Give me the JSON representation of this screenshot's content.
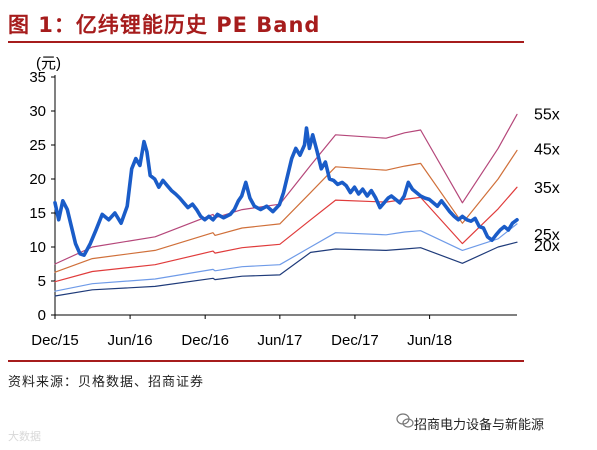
{
  "title": "图 1：亿纬锂能历史 PE Band",
  "source": "资料来源：贝格数据、招商证券",
  "wechat_account": "招商电力设备与新能源",
  "watermark": "大数据",
  "colors": {
    "title": "#a61c1c",
    "price": "#1a5cc8",
    "band_55x": "#b5477a",
    "band_45x": "#d0703a",
    "band_35x": "#e03c3c",
    "band_25x": "#6f9be8",
    "band_20x": "#1f3b7a"
  },
  "chart_data": {
    "type": "line",
    "ylabel": "(元)",
    "ylim": [
      0,
      35
    ],
    "yticks": [
      "0",
      "5",
      "10",
      "15",
      "20",
      "25",
      "30",
      "35"
    ],
    "xlim": [
      "2015-12-01",
      "2018-12-31"
    ],
    "xticks": [
      {
        "date": "2015-12-01",
        "label": "Dec/15"
      },
      {
        "date": "2016-06-01",
        "label": "Jun/16"
      },
      {
        "date": "2016-12-01",
        "label": "Dec/16"
      },
      {
        "date": "2017-06-01",
        "label": "Jun/17"
      },
      {
        "date": "2017-12-01",
        "label": "Dec/17"
      },
      {
        "date": "2018-06-01",
        "label": "Jun/18"
      }
    ],
    "series": [
      {
        "name": "55x",
        "key": "band_55x",
        "points": [
          [
            "2015-12-01",
            7.5
          ],
          [
            "2016-03-01",
            10.0
          ],
          [
            "2016-08-01",
            11.5
          ],
          [
            "2016-12-20",
            14.8
          ],
          [
            "2016-12-25",
            14.3
          ],
          [
            "2017-03-01",
            15.5
          ],
          [
            "2017-06-01",
            16.3
          ],
          [
            "2017-08-15",
            22.0
          ],
          [
            "2017-10-15",
            26.5
          ],
          [
            "2018-02-15",
            26.0
          ],
          [
            "2018-04-01",
            26.8
          ],
          [
            "2018-05-10",
            27.2
          ],
          [
            "2018-08-20",
            16.5
          ],
          [
            "2018-11-15",
            24.5
          ],
          [
            "2018-12-31",
            29.5
          ]
        ]
      },
      {
        "name": "45x",
        "key": "band_45x",
        "points": [
          [
            "2015-12-01",
            6.3
          ],
          [
            "2016-03-01",
            8.3
          ],
          [
            "2016-08-01",
            9.5
          ],
          [
            "2016-12-20",
            12.1
          ],
          [
            "2016-12-25",
            11.7
          ],
          [
            "2017-03-01",
            12.8
          ],
          [
            "2017-06-01",
            13.4
          ],
          [
            "2017-08-15",
            18.0
          ],
          [
            "2017-10-15",
            21.8
          ],
          [
            "2018-02-15",
            21.3
          ],
          [
            "2018-04-01",
            21.9
          ],
          [
            "2018-05-10",
            22.3
          ],
          [
            "2018-08-20",
            13.5
          ],
          [
            "2018-11-15",
            20.0
          ],
          [
            "2018-12-31",
            24.2
          ]
        ]
      },
      {
        "name": "35x",
        "key": "band_35x",
        "points": [
          [
            "2015-12-01",
            4.9
          ],
          [
            "2016-03-01",
            6.4
          ],
          [
            "2016-08-01",
            7.4
          ],
          [
            "2016-12-20",
            9.4
          ],
          [
            "2016-12-25",
            9.1
          ],
          [
            "2017-03-01",
            9.9
          ],
          [
            "2017-06-01",
            10.4
          ],
          [
            "2017-08-15",
            14.0
          ],
          [
            "2017-10-15",
            16.9
          ],
          [
            "2018-02-15",
            16.6
          ],
          [
            "2018-04-01",
            17.0
          ],
          [
            "2018-05-10",
            17.3
          ],
          [
            "2018-08-20",
            10.5
          ],
          [
            "2018-11-15",
            15.6
          ],
          [
            "2018-12-31",
            18.8
          ]
        ]
      },
      {
        "name": "25x",
        "key": "band_25x",
        "points": [
          [
            "2015-12-01",
            3.5
          ],
          [
            "2016-03-01",
            4.6
          ],
          [
            "2016-08-01",
            5.3
          ],
          [
            "2016-12-20",
            6.7
          ],
          [
            "2016-12-25",
            6.5
          ],
          [
            "2017-03-01",
            7.1
          ],
          [
            "2017-06-01",
            7.4
          ],
          [
            "2017-08-15",
            10.0
          ],
          [
            "2017-10-15",
            12.1
          ],
          [
            "2018-02-15",
            11.8
          ],
          [
            "2018-04-01",
            12.2
          ],
          [
            "2018-05-10",
            12.4
          ],
          [
            "2018-08-20",
            9.5
          ],
          [
            "2018-11-15",
            11.2
          ],
          [
            "2018-12-31",
            13.4
          ]
        ]
      },
      {
        "name": "20x",
        "key": "band_20x",
        "points": [
          [
            "2015-12-01",
            2.8
          ],
          [
            "2016-03-01",
            3.7
          ],
          [
            "2016-08-01",
            4.2
          ],
          [
            "2016-12-20",
            5.4
          ],
          [
            "2016-12-25",
            5.2
          ],
          [
            "2017-03-01",
            5.7
          ],
          [
            "2017-06-01",
            5.9
          ],
          [
            "2017-08-15",
            9.2
          ],
          [
            "2017-10-15",
            9.7
          ],
          [
            "2018-02-15",
            9.5
          ],
          [
            "2018-04-01",
            9.7
          ],
          [
            "2018-05-10",
            9.9
          ],
          [
            "2018-08-20",
            7.6
          ],
          [
            "2018-11-15",
            10.0
          ],
          [
            "2018-12-31",
            10.7
          ]
        ]
      },
      {
        "name": "",
        "key": "price",
        "points": [
          [
            "2015-12-01",
            16.5
          ],
          [
            "2015-12-10",
            14.0
          ],
          [
            "2015-12-20",
            16.8
          ],
          [
            "2015-12-31",
            15.5
          ],
          [
            "2016-01-10",
            13.0
          ],
          [
            "2016-01-20",
            10.5
          ],
          [
            "2016-01-31",
            9.0
          ],
          [
            "2016-02-10",
            8.8
          ],
          [
            "2016-02-25",
            10.5
          ],
          [
            "2016-03-10",
            12.5
          ],
          [
            "2016-03-25",
            14.8
          ],
          [
            "2016-04-10",
            14.0
          ],
          [
            "2016-04-25",
            15.0
          ],
          [
            "2016-05-10",
            13.5
          ],
          [
            "2016-05-25",
            16.0
          ],
          [
            "2016-06-05",
            21.5
          ],
          [
            "2016-06-15",
            23.0
          ],
          [
            "2016-06-25",
            22.0
          ],
          [
            "2016-07-05",
            25.5
          ],
          [
            "2016-07-12",
            24.0
          ],
          [
            "2016-07-20",
            20.5
          ],
          [
            "2016-07-31",
            20.0
          ],
          [
            "2016-08-10",
            18.8
          ],
          [
            "2016-08-20",
            19.8
          ],
          [
            "2016-08-31",
            19.0
          ],
          [
            "2016-09-10",
            18.3
          ],
          [
            "2016-09-20",
            17.8
          ],
          [
            "2016-09-30",
            17.2
          ],
          [
            "2016-10-10",
            16.5
          ],
          [
            "2016-10-20",
            15.8
          ],
          [
            "2016-10-31",
            16.3
          ],
          [
            "2016-11-10",
            15.5
          ],
          [
            "2016-11-20",
            14.5
          ],
          [
            "2016-11-30",
            14.0
          ],
          [
            "2016-12-10",
            14.5
          ],
          [
            "2016-12-20",
            14.0
          ],
          [
            "2016-12-31",
            14.8
          ],
          [
            "2017-01-15",
            14.3
          ],
          [
            "2017-01-31",
            14.8
          ],
          [
            "2017-02-10",
            15.5
          ],
          [
            "2017-02-20",
            16.8
          ],
          [
            "2017-02-28",
            17.5
          ],
          [
            "2017-03-10",
            19.5
          ],
          [
            "2017-03-20",
            17.2
          ],
          [
            "2017-03-31",
            16.0
          ],
          [
            "2017-04-15",
            15.5
          ],
          [
            "2017-04-30",
            16.0
          ],
          [
            "2017-05-15",
            15.2
          ],
          [
            "2017-05-31",
            16.2
          ],
          [
            "2017-06-10",
            18.0
          ],
          [
            "2017-06-20",
            20.5
          ],
          [
            "2017-06-30",
            23.0
          ],
          [
            "2017-07-10",
            24.5
          ],
          [
            "2017-07-20",
            23.5
          ],
          [
            "2017-07-31",
            25.0
          ],
          [
            "2017-08-05",
            27.5
          ],
          [
            "2017-08-12",
            24.5
          ],
          [
            "2017-08-20",
            26.5
          ],
          [
            "2017-08-31",
            24.0
          ],
          [
            "2017-09-10",
            21.5
          ],
          [
            "2017-09-20",
            22.5
          ],
          [
            "2017-09-30",
            20.0
          ],
          [
            "2017-10-10",
            19.8
          ],
          [
            "2017-10-20",
            19.2
          ],
          [
            "2017-10-31",
            19.5
          ],
          [
            "2017-11-10",
            19.0
          ],
          [
            "2017-11-20",
            18.0
          ],
          [
            "2017-11-30",
            18.8
          ],
          [
            "2017-12-10",
            17.8
          ],
          [
            "2017-12-20",
            18.5
          ],
          [
            "2017-12-31",
            17.5
          ],
          [
            "2018-01-10",
            18.3
          ],
          [
            "2018-01-20",
            17.3
          ],
          [
            "2018-01-31",
            15.8
          ],
          [
            "2018-02-10",
            16.5
          ],
          [
            "2018-02-20",
            17.2
          ],
          [
            "2018-02-28",
            17.5
          ],
          [
            "2018-03-10",
            17.0
          ],
          [
            "2018-03-20",
            16.5
          ],
          [
            "2018-03-31",
            17.5
          ],
          [
            "2018-04-10",
            19.5
          ],
          [
            "2018-04-20",
            18.5
          ],
          [
            "2018-04-30",
            18.0
          ],
          [
            "2018-05-10",
            17.5
          ],
          [
            "2018-05-20",
            17.2
          ],
          [
            "2018-05-31",
            17.0
          ],
          [
            "2018-06-10",
            16.5
          ],
          [
            "2018-06-20",
            16.0
          ],
          [
            "2018-06-30",
            16.8
          ],
          [
            "2018-07-10",
            16.0
          ],
          [
            "2018-07-20",
            15.2
          ],
          [
            "2018-07-31",
            14.5
          ],
          [
            "2018-08-10",
            14.0
          ],
          [
            "2018-08-20",
            14.5
          ],
          [
            "2018-08-31",
            14.0
          ],
          [
            "2018-09-10",
            13.8
          ],
          [
            "2018-09-20",
            14.2
          ],
          [
            "2018-09-30",
            13.0
          ],
          [
            "2018-10-10",
            12.8
          ],
          [
            "2018-10-20",
            11.5
          ],
          [
            "2018-10-31",
            11.0
          ],
          [
            "2018-11-10",
            11.8
          ],
          [
            "2018-11-20",
            12.5
          ],
          [
            "2018-11-30",
            13.0
          ],
          [
            "2018-12-10",
            12.5
          ],
          [
            "2018-12-20",
            13.5
          ],
          [
            "2018-12-31",
            14.0
          ]
        ]
      }
    ]
  }
}
